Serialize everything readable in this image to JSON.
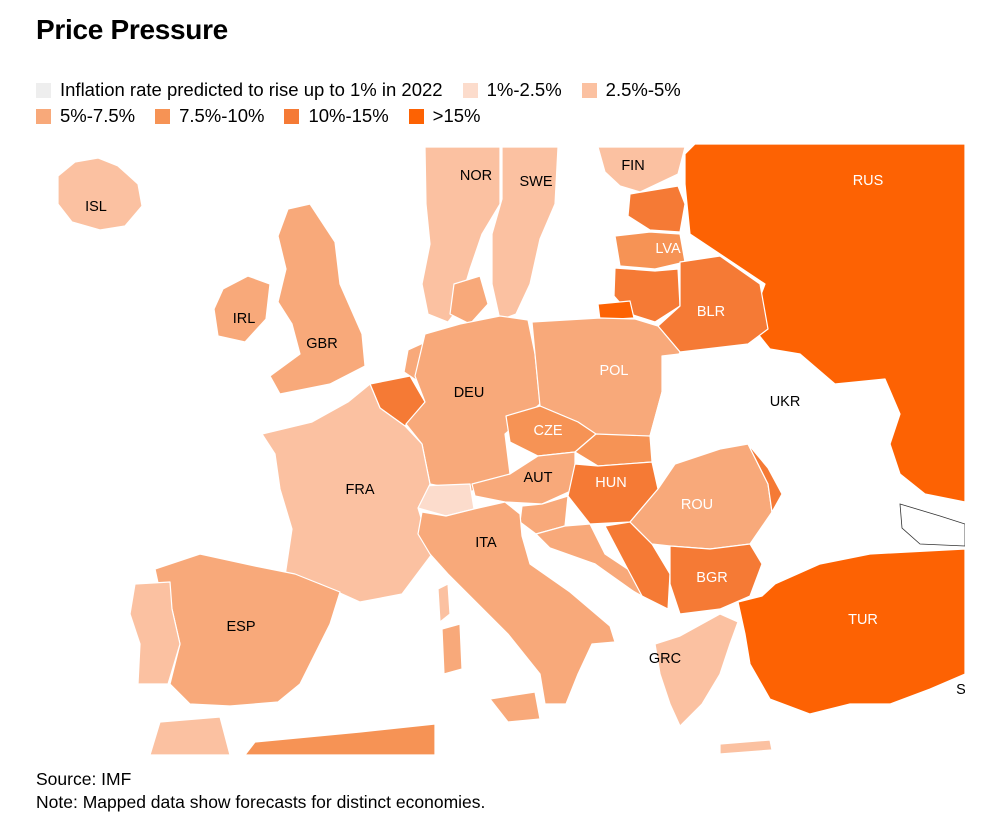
{
  "title": "Price Pressure",
  "legend": {
    "items": [
      {
        "label": "Inflation rate predicted to rise up to 1% in 2022",
        "color": "#eeeeee"
      },
      {
        "label": "1%-2.5%",
        "color": "#fcdccc"
      },
      {
        "label": "2.5%-5%",
        "color": "#fbc1a1"
      },
      {
        "label": "5%-7.5%",
        "color": "#f8a97a"
      },
      {
        "label": "7.5%-10%",
        "color": "#f69355"
      },
      {
        "label": "10%-15%",
        "color": "#f57a35"
      },
      {
        "label": ">15%",
        "color": "#fd6203"
      }
    ]
  },
  "countries": {
    "ISL": {
      "label": "ISL",
      "bin": "2.5%-5%",
      "color": "#fbc1a1"
    },
    "NOR": {
      "label": "NOR",
      "bin": "2.5%-5%",
      "color": "#fbc1a1"
    },
    "SWE": {
      "label": "SWE",
      "bin": "2.5%-5%",
      "color": "#fbc1a1"
    },
    "FIN": {
      "label": "FIN",
      "bin": "2.5%-5%",
      "color": "#fbc1a1"
    },
    "RUS": {
      "label": "RUS",
      "bin": ">15%",
      "color": "#fd6203"
    },
    "IRL": {
      "label": "IRL",
      "bin": "5%-7.5%",
      "color": "#f8a97a"
    },
    "GBR": {
      "label": "GBR",
      "bin": "5%-7.5%",
      "color": "#f8a97a"
    },
    "LVA": {
      "label": "LVA",
      "bin": "7.5%-10%",
      "color": "#f69355"
    },
    "BLR": {
      "label": "BLR",
      "bin": "10%-15%",
      "color": "#f57a35"
    },
    "DEU": {
      "label": "DEU",
      "bin": "5%-7.5%",
      "color": "#f8a97a"
    },
    "POL": {
      "label": "POL",
      "bin": "5%-7.5%",
      "color": "#f8a97a"
    },
    "UKR": {
      "label": "UKR",
      "bin": "",
      "color": "#ffffff"
    },
    "CZE": {
      "label": "CZE",
      "bin": "7.5%-10%",
      "color": "#f69355"
    },
    "FRA": {
      "label": "FRA",
      "bin": "2.5%-5%",
      "color": "#fbc1a1"
    },
    "AUT": {
      "label": "AUT",
      "bin": "5%-7.5%",
      "color": "#f8a97a"
    },
    "HUN": {
      "label": "HUN",
      "bin": "10%-15%",
      "color": "#f57a35"
    },
    "ROU": {
      "label": "ROU",
      "bin": "5%-7.5%",
      "color": "#f8a97a"
    },
    "ITA": {
      "label": "ITA",
      "bin": "5%-7.5%",
      "color": "#f8a97a"
    },
    "BGR": {
      "label": "BGR",
      "bin": "10%-15%",
      "color": "#f57a35"
    },
    "ESP": {
      "label": "ESP",
      "bin": "5%-7.5%",
      "color": "#f8a97a"
    },
    "TUR": {
      "label": "TUR",
      "bin": ">15%",
      "color": "#fd6203"
    },
    "GRC": {
      "label": "GRC",
      "bin": "2.5%-5%",
      "color": "#fbc1a1"
    },
    "SYR_partial": {
      "label": "S",
      "bin": "",
      "color": "#ffffff"
    }
  },
  "footer": {
    "source": "Source: IMF",
    "note": "Note: Mapped data show forecasts for distinct economies."
  }
}
